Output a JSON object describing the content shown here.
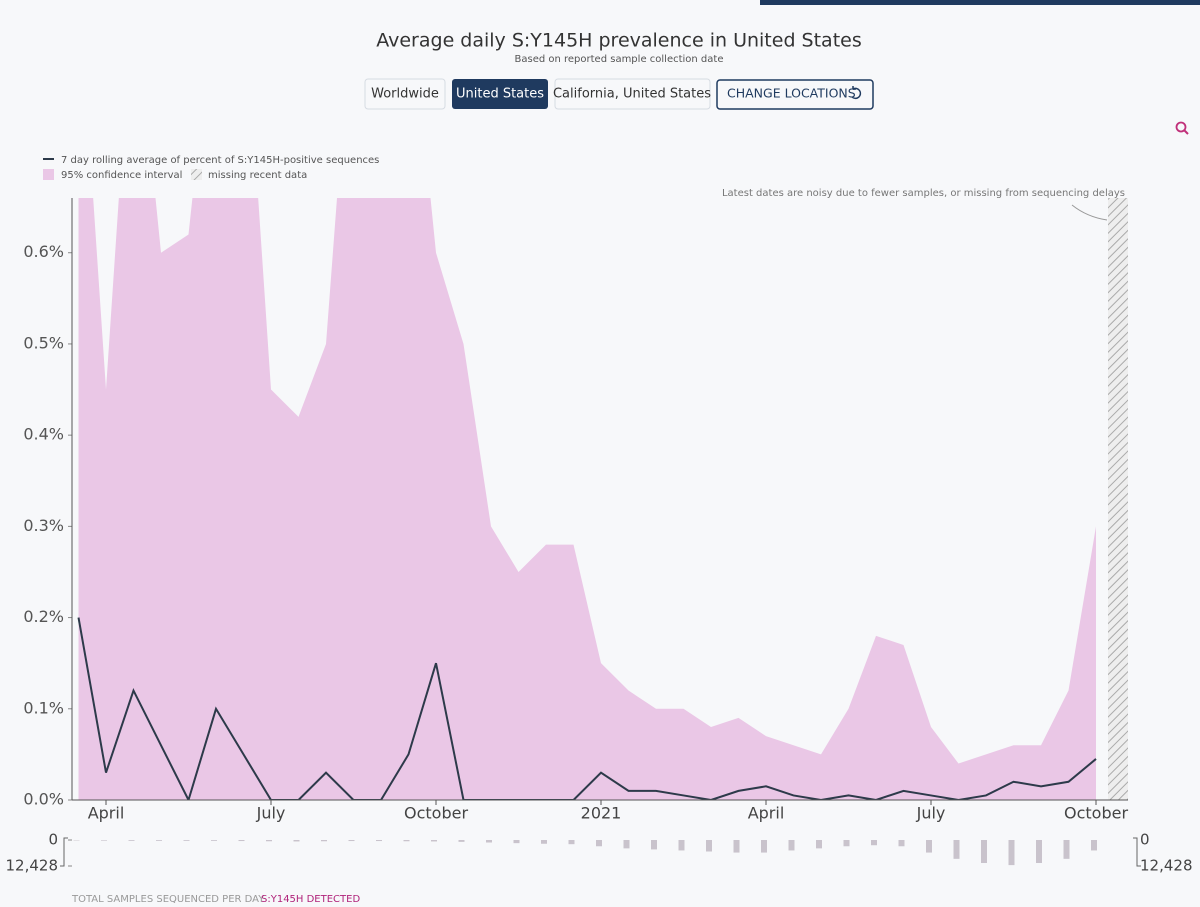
{
  "header": {
    "title": "Average daily S:Y145H prevalence in United States",
    "subtitle": "Based on reported sample collection date",
    "buttons": [
      "Worldwide",
      "United States",
      "California, United States",
      "CHANGE LOCATIONS"
    ]
  },
  "chart_data": [
    {
      "type": "line",
      "legend": {
        "line": "7 day rolling average of percent of S:Y145H-positive sequences",
        "band": "95% confidence interval",
        "missing": "missing recent data"
      },
      "annotation": "Latest dates are noisy due to fewer samples, or missing from sequencing delays",
      "categories": [
        null,
        "April",
        null,
        null,
        null,
        null,
        null,
        "July",
        null,
        null,
        null,
        null,
        null,
        "October",
        null,
        null,
        null,
        null,
        null,
        "2021",
        null,
        null,
        null,
        null,
        null,
        "April",
        null,
        null,
        null,
        null,
        null,
        "July",
        null,
        null,
        null,
        null,
        null,
        "October"
      ],
      "series": [
        {
          "name": "7 day rolling average of percent of S:Y145H-positive sequences",
          "color": "#2d3a4a",
          "values": [
            0.2,
            0.03,
            0.12,
            0.06,
            0,
            0.1,
            0.05,
            0,
            0,
            0.03,
            0,
            0,
            0.05,
            0.15,
            0,
            0,
            0,
            0,
            0,
            0.03,
            0.01,
            0.01,
            0.005,
            0,
            0.01,
            0.015,
            0.005,
            0,
            0.005,
            0,
            0.01,
            0.005,
            0,
            0.005,
            0.02,
            0.015,
            0.02,
            0.045
          ]
        },
        {
          "name": "95% confidence interval",
          "color": "#eac7e6",
          "upper": [
            0.9,
            0.45,
            0.9,
            0.6,
            0.62,
            0.9,
            0.9,
            0.45,
            0.42,
            0.5,
            0.9,
            0.9,
            0.9,
            0.6,
            0.5,
            0.3,
            0.25,
            0.28,
            0.28,
            0.15,
            0.12,
            0.1,
            0.1,
            0.08,
            0.09,
            0.07,
            0.06,
            0.05,
            0.1,
            0.18,
            0.17,
            0.08,
            0.04,
            0.05,
            0.06,
            0.06,
            0.12,
            0.3
          ],
          "lower": [
            0,
            0,
            0,
            0,
            0,
            0,
            0,
            0,
            0,
            0,
            0,
            0,
            0,
            0,
            0,
            0,
            0,
            0,
            0,
            0,
            0,
            0,
            0,
            0,
            0,
            0,
            0,
            0,
            0,
            0,
            0,
            0,
            0,
            0,
            0,
            0,
            0,
            0
          ]
        }
      ],
      "ylim": [
        0,
        0.66
      ],
      "yticks": [
        {
          "value": 0,
          "label": "0.0%"
        },
        {
          "value": 0.1,
          "label": "0.1%"
        },
        {
          "value": 0.2,
          "label": "0.2%"
        },
        {
          "value": 0.3,
          "label": "0.3%"
        },
        {
          "value": 0.4,
          "label": "0.4%"
        },
        {
          "value": 0.5,
          "label": "0.5%"
        },
        {
          "value": 0.6,
          "label": "0.6%"
        }
      ]
    },
    {
      "type": "bar",
      "series": [
        {
          "name": "TOTAL SAMPLES SEQUENCED PER DAY",
          "color": "#c9c3cc",
          "values": [
            200,
            300,
            400,
            400,
            400,
            400,
            500,
            600,
            700,
            600,
            500,
            500,
            600,
            700,
            900,
            1200,
            1500,
            1800,
            2000,
            3000,
            4000,
            4500,
            5000,
            5500,
            6000,
            6000,
            5000,
            4000,
            3000,
            2500,
            3000,
            6000,
            9000,
            11000,
            12000,
            11000,
            9000,
            5000
          ]
        },
        {
          "name": "S:Y145H DETECTED",
          "color": "#b0237a",
          "values": [
            1,
            0,
            1,
            0,
            0,
            1,
            0,
            0,
            0,
            0,
            0,
            0,
            0,
            1,
            0,
            0,
            0,
            0,
            0,
            1,
            1,
            1,
            0,
            0,
            1,
            1,
            0,
            0,
            0,
            0,
            1,
            0,
            0,
            1,
            2,
            2,
            2,
            3
          ]
        }
      ],
      "ylim": [
        0,
        12428
      ],
      "yticks": [
        0,
        {
          "value": 12428,
          "label": "12,428"
        }
      ]
    }
  ]
}
